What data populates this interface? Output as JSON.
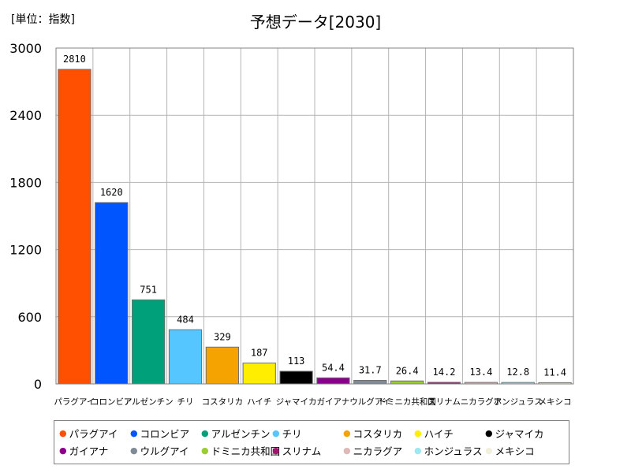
{
  "unit_label": "[単位：指数]",
  "chart_data": {
    "type": "bar",
    "title": "予想データ[2030]",
    "categories": [
      "パラグアイ",
      "コロンビア",
      "アルゼンチン",
      "チリ",
      "コスタリカ",
      "ハイチ",
      "ジャマイカ",
      "ガイアナ",
      "ウルグアイ",
      "ドミニカ共和国",
      "スリナム",
      "ニカラグア",
      "ホンジュラス",
      "メキシコ"
    ],
    "values": [
      2810,
      1620,
      751,
      484,
      329,
      187,
      113,
      54.4,
      31.7,
      26.4,
      14.2,
      13.4,
      12.8,
      11.4
    ],
    "value_labels": [
      "2810",
      "1620",
      "751",
      "484",
      "329",
      "187",
      "113",
      "54.4",
      "31.7",
      "26.4",
      "14.2",
      "13.4",
      "12.8",
      "11.4"
    ],
    "colors": [
      "#ff4f00",
      "#0055ff",
      "#00a07a",
      "#55c6ff",
      "#f5a300",
      "#ffee00",
      "#000000",
      "#8b008b",
      "#808b96",
      "#9acd32",
      "#a0166e",
      "#e0b8b8",
      "#9ee8ef",
      "#f0f0dc"
    ],
    "ylim": [
      0,
      3000
    ],
    "yticks": [
      0,
      600,
      1200,
      1800,
      2400,
      3000
    ],
    "ytick_labels": [
      "0",
      "600",
      "1200",
      "1800",
      "2400",
      "3000"
    ],
    "xlabel": "",
    "ylabel": "",
    "grid": true,
    "legend_position": "bottom"
  }
}
